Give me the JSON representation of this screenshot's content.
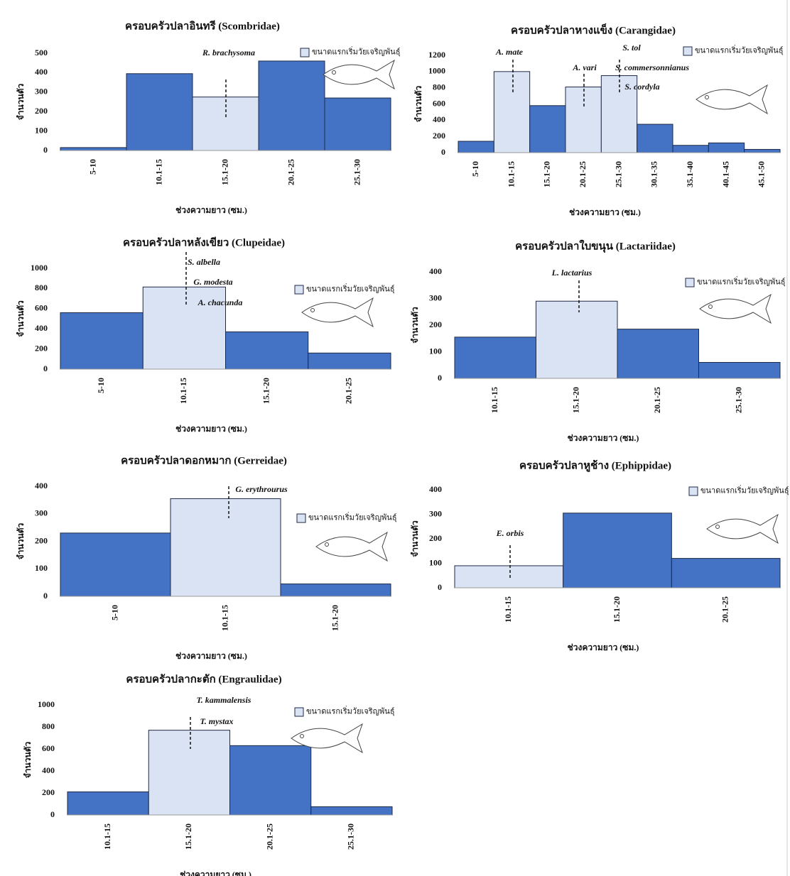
{
  "chart_data": [
    {
      "type": "bar",
      "title": "ครอบครัวปลาอินทรี (Scombridae)",
      "x_label": "ช่วงความยาว (ซม.)",
      "y_label": "จำนวนตัว",
      "categories": [
        "5-10",
        "10.1-15",
        "15.1-20",
        "20.1-25",
        "25.1-30"
      ],
      "values": [
        15,
        395,
        275,
        460,
        270
      ],
      "colors": [
        "#4472c4",
        "#4472c4",
        "#dae3f3",
        "#4472c4",
        "#4472c4"
      ],
      "ylim": [
        0,
        500
      ],
      "yticks": [
        0,
        100,
        200,
        300,
        400,
        500
      ],
      "legend": {
        "label": "ขนาดแรกเริ่มวัยเจริญพันธุ์",
        "color": "#dae3f3"
      },
      "annotations": [
        "R. brachysoma"
      ]
    },
    {
      "type": "bar",
      "title": "ครอบครัวปลาหางแข็ง (Carangidae)",
      "x_label": "ช่วงความยาว (ซม.)",
      "y_label": "จำนวนตัว",
      "categories": [
        "5-10",
        "10.1-15",
        "15.1-20",
        "20.1-25",
        "25.1-30",
        "30.1-35",
        "35.1-40",
        "40.1-45",
        "45.1-50"
      ],
      "values": [
        140,
        1000,
        580,
        810,
        950,
        350,
        90,
        120,
        40
      ],
      "colors": [
        "#4472c4",
        "#dae3f3",
        "#4472c4",
        "#dae3f3",
        "#dae3f3",
        "#4472c4",
        "#4472c4",
        "#4472c4",
        "#4472c4"
      ],
      "ylim": [
        0,
        1200
      ],
      "yticks": [
        0,
        200,
        400,
        600,
        800,
        1000,
        1200
      ],
      "legend": {
        "label": "ขนาดแรกเริ่มวัยเจริญพันธุ์",
        "color": "#dae3f3"
      },
      "annotations": [
        "A. mate",
        "A. vari",
        "S. tol",
        "S. commersonnianus",
        "S. cordyla"
      ]
    },
    {
      "type": "bar",
      "title": "ครอบครัวปลาหลังเขียว (Clupeidae)",
      "x_label": "ช่วงความยาว (ซม.)",
      "y_label": "จำนวนตัว",
      "categories": [
        "5-10",
        "10.1-15",
        "15.1-20",
        "20.1-25"
      ],
      "values": [
        560,
        815,
        370,
        160
      ],
      "colors": [
        "#4472c4",
        "#dae3f3",
        "#4472c4",
        "#4472c4"
      ],
      "ylim": [
        0,
        1000
      ],
      "yticks": [
        0,
        200,
        400,
        600,
        800,
        1000
      ],
      "legend": {
        "label": "ขนาดแรกเริ่มวัยเจริญพันธุ์",
        "color": "#dae3f3"
      },
      "annotations": [
        "S. albella",
        "G. modesta",
        "A. chacunda"
      ]
    },
    {
      "type": "bar",
      "title": "ครอบครัวปลาใบขนุน (Lactariidae)",
      "x_label": "ช่วงความยาว (ซม.)",
      "y_label": "จำนวนตัว",
      "categories": [
        "10.1-15",
        "15.1-20",
        "20.1-25",
        "25.1-30"
      ],
      "values": [
        155,
        290,
        185,
        60
      ],
      "colors": [
        "#4472c4",
        "#dae3f3",
        "#4472c4",
        "#4472c4"
      ],
      "ylim": [
        0,
        400
      ],
      "yticks": [
        0,
        100,
        200,
        300,
        400
      ],
      "legend": {
        "label": "ขนาดแรกเริ่มวัยเจริญพันธุ์",
        "color": "#dae3f3"
      },
      "annotations": [
        "L. lactarius"
      ]
    },
    {
      "type": "bar",
      "title": "ครอบครัวปลาดอกหมาก (Gerreidae)",
      "x_label": "ช่วงความยาว (ซม.)",
      "y_label": "จำนวนตัว",
      "categories": [
        "5-10",
        "10.1-15",
        "15.1-20"
      ],
      "values": [
        230,
        355,
        45
      ],
      "colors": [
        "#4472c4",
        "#dae3f3",
        "#4472c4"
      ],
      "ylim": [
        0,
        400
      ],
      "yticks": [
        0,
        100,
        200,
        300,
        400
      ],
      "legend": {
        "label": "ขนาดแรกเริ่มวัยเจริญพันธุ์",
        "color": "#dae3f3"
      },
      "annotations": [
        "G. erythrourus"
      ]
    },
    {
      "type": "bar",
      "title": "ครอบครัวปลาหูช้าง (Ephippidae)",
      "x_label": "ช่วงความยาว (ซม.)",
      "y_label": "จำนวนตัว",
      "categories": [
        "10.1-15",
        "15.1-20",
        "20.1-25"
      ],
      "values": [
        90,
        305,
        120
      ],
      "colors": [
        "#dae3f3",
        "#4472c4",
        "#4472c4"
      ],
      "ylim": [
        0,
        400
      ],
      "yticks": [
        0,
        100,
        200,
        300,
        400
      ],
      "legend": {
        "label": "ขนาดแรกเริ่มวัยเจริญพันธุ์",
        "color": "#dae3f3"
      },
      "annotations": [
        "E. orbis"
      ]
    },
    {
      "type": "bar",
      "title": "ครอบครัวปลากะตัก (Engraulidae)",
      "x_label": "ช่วงความยาว (ซม.)",
      "y_label": "จำนวนตัว",
      "categories": [
        "10.1-15",
        "15.1-20",
        "20.1-25",
        "25.1-30"
      ],
      "values": [
        210,
        770,
        630,
        75
      ],
      "colors": [
        "#4472c4",
        "#dae3f3",
        "#4472c4",
        "#4472c4"
      ],
      "ylim": [
        0,
        1000
      ],
      "yticks": [
        0,
        200,
        400,
        600,
        800,
        1000
      ],
      "legend": {
        "label": "ขนาดแรกเริ่มวัยเจริญพันธุ์",
        "color": "#dae3f3"
      },
      "annotations": [
        "T. kammalensis",
        "T. mystax"
      ]
    }
  ]
}
